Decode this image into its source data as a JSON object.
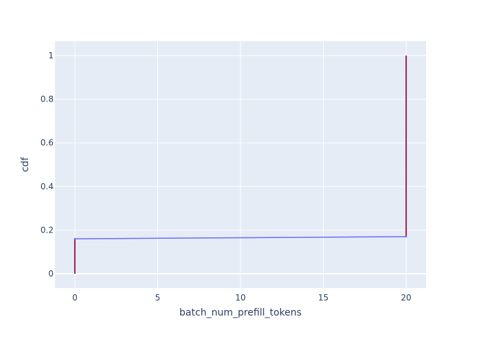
{
  "chart_data": {
    "type": "line",
    "title": "",
    "xlabel": "batch_num_prefill_tokens",
    "ylabel": "cdf",
    "xlim": [
      -1.2,
      21.2
    ],
    "ylim": [
      -0.066,
      1.066
    ],
    "x_ticks": [
      0,
      5,
      10,
      15,
      20
    ],
    "x_tick_labels": [
      "0",
      "5",
      "10",
      "15",
      "20"
    ],
    "y_ticks": [
      0,
      0.2,
      0.4,
      0.6,
      0.8,
      1
    ],
    "y_tick_labels": [
      "0",
      "0.2",
      "0.4",
      "0.6",
      "0.8",
      "1"
    ],
    "grid": true,
    "legend": "none",
    "colors": {
      "plot_bg": "#E5ECF6",
      "grid": "#ffffff",
      "line": "#636EFA",
      "marker": "#C2185B"
    },
    "series": [
      {
        "values": [
          {
            "x": 0,
            "y": 0.16
          },
          {
            "x": 20,
            "y": 0.17
          }
        ]
      }
    ],
    "vertical_segments": [
      {
        "x": 0,
        "y0": 0,
        "y1": 0.16
      },
      {
        "x": 20,
        "y0": 0.17,
        "y1": 1.0
      }
    ]
  }
}
